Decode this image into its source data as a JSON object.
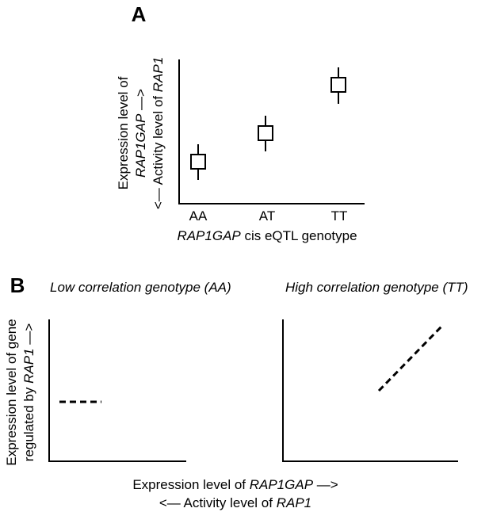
{
  "panel_a": {
    "label": "A",
    "y_label": {
      "lines": [
        [
          "Expression level of"
        ],
        [
          "RAP1GAP",
          " —>"
        ],
        [
          "<— Activity level of ",
          "RAP1"
        ]
      ]
    },
    "categories": [
      "AA",
      "AT",
      "TT"
    ],
    "x_label": [
      "RAP1GAP",
      " cis eQTL genotype"
    ]
  },
  "panel_b": {
    "label": "B",
    "left_title": "Low correlation genotype (AA)",
    "right_title": "High correlation genotype (TT)",
    "y_label": {
      "lines": [
        [
          "Expression level of gene"
        ],
        [
          "regulated by ",
          "RAP1",
          " —>"
        ]
      ]
    },
    "x_label": {
      "lines": [
        [
          "Expression level of ",
          "RAP1GAP",
          " —>"
        ],
        [
          "<— Activity level of ",
          "RAP1"
        ]
      ]
    }
  }
}
